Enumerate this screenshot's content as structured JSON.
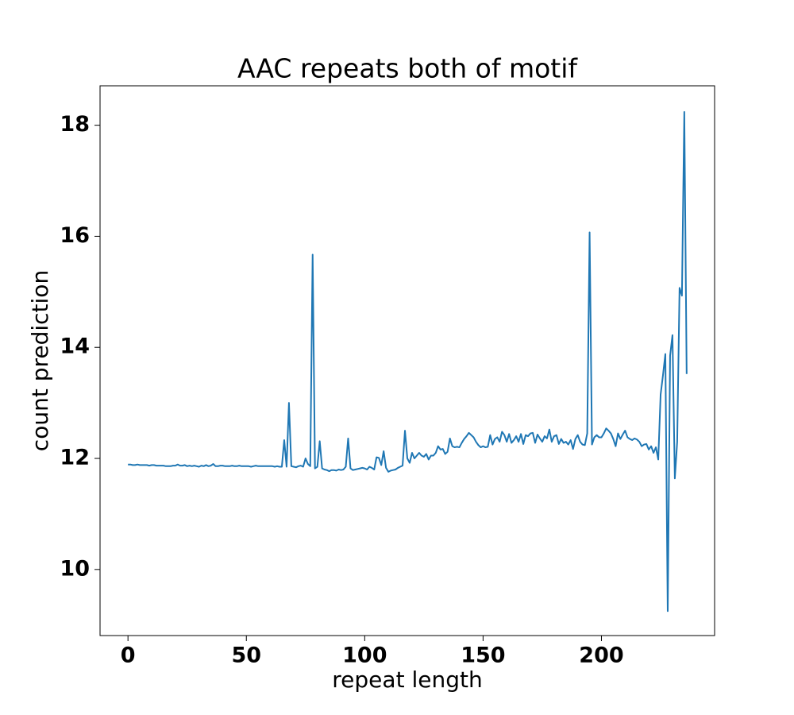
{
  "chart_data": {
    "type": "line",
    "title": "AAC repeats both of motif",
    "x_label": "repeat length",
    "y_label": "count prediction",
    "x": [
      0,
      1,
      2,
      3,
      4,
      5,
      6,
      7,
      8,
      9,
      10,
      11,
      12,
      13,
      14,
      15,
      16,
      17,
      18,
      19,
      20,
      21,
      22,
      23,
      24,
      25,
      26,
      27,
      28,
      29,
      30,
      31,
      32,
      33,
      34,
      35,
      36,
      37,
      38,
      39,
      40,
      41,
      42,
      43,
      44,
      45,
      46,
      47,
      48,
      49,
      50,
      51,
      52,
      53,
      54,
      55,
      56,
      57,
      58,
      59,
      60,
      61,
      62,
      63,
      64,
      65,
      66,
      67,
      68,
      69,
      70,
      71,
      72,
      73,
      74,
      75,
      76,
      77,
      78,
      79,
      80,
      81,
      82,
      83,
      84,
      85,
      86,
      87,
      88,
      89,
      90,
      91,
      92,
      93,
      94,
      95,
      96,
      97,
      98,
      99,
      100,
      101,
      102,
      103,
      104,
      105,
      106,
      107,
      108,
      109,
      110,
      111,
      112,
      113,
      114,
      115,
      116,
      117,
      118,
      119,
      120,
      121,
      122,
      123,
      124,
      125,
      126,
      127,
      128,
      129,
      130,
      131,
      132,
      133,
      134,
      135,
      136,
      137,
      138,
      139,
      140,
      141,
      142,
      143,
      144,
      145,
      146,
      147,
      148,
      149,
      150,
      151,
      152,
      153,
      154,
      155,
      156,
      157,
      158,
      159,
      160,
      161,
      162,
      163,
      164,
      165,
      166,
      167,
      168,
      169,
      170,
      171,
      172,
      173,
      174,
      175,
      176,
      177,
      178,
      179,
      180,
      181,
      182,
      183,
      184,
      185,
      186,
      187,
      188,
      189,
      190,
      191,
      192,
      193,
      194,
      195,
      196,
      197,
      198,
      199,
      200,
      201,
      202,
      203,
      204,
      205,
      206,
      207,
      208,
      209,
      210,
      211,
      212,
      213,
      214,
      215,
      216,
      217,
      218,
      219,
      220,
      221,
      222,
      223,
      224,
      225,
      226,
      227,
      228,
      229,
      230,
      231,
      232,
      233,
      234,
      235,
      236
    ],
    "series": [
      {
        "color": "#1f77b4",
        "values": [
          11.89,
          11.89,
          11.88,
          11.88,
          11.89,
          11.88,
          11.88,
          11.88,
          11.88,
          11.87,
          11.88,
          11.88,
          11.87,
          11.87,
          11.87,
          11.87,
          11.86,
          11.86,
          11.86,
          11.87,
          11.87,
          11.89,
          11.87,
          11.87,
          11.88,
          11.86,
          11.87,
          11.86,
          11.87,
          11.86,
          11.85,
          11.87,
          11.86,
          11.88,
          11.86,
          11.87,
          11.9,
          11.86,
          11.86,
          11.87,
          11.87,
          11.86,
          11.86,
          11.86,
          11.87,
          11.86,
          11.86,
          11.87,
          11.86,
          11.86,
          11.86,
          11.86,
          11.85,
          11.86,
          11.87,
          11.86,
          11.86,
          11.86,
          11.86,
          11.86,
          11.86,
          11.86,
          11.85,
          11.86,
          11.85,
          11.85,
          12.33,
          11.85,
          13.0,
          11.86,
          11.85,
          11.84,
          11.86,
          11.87,
          11.85,
          12.0,
          11.9,
          11.86,
          15.67,
          11.82,
          11.85,
          12.31,
          11.82,
          11.8,
          11.79,
          11.77,
          11.79,
          11.79,
          11.78,
          11.8,
          11.79,
          11.8,
          11.85,
          12.36,
          11.82,
          11.79,
          11.8,
          11.81,
          11.82,
          11.83,
          11.82,
          11.8,
          11.85,
          11.83,
          11.8,
          12.02,
          12.01,
          11.88,
          12.13,
          11.83,
          11.76,
          11.78,
          11.79,
          11.8,
          11.83,
          11.85,
          11.87,
          12.5,
          12.0,
          11.92,
          12.1,
          12.0,
          12.05,
          12.1,
          12.05,
          12.03,
          12.08,
          11.98,
          12.05,
          12.05,
          12.1,
          12.22,
          12.16,
          12.17,
          12.08,
          12.12,
          12.36,
          12.22,
          12.2,
          12.21,
          12.2,
          12.28,
          12.35,
          12.4,
          12.46,
          12.42,
          12.38,
          12.3,
          12.24,
          12.2,
          12.22,
          12.2,
          12.21,
          12.42,
          12.25,
          12.35,
          12.38,
          12.3,
          12.48,
          12.42,
          12.3,
          12.44,
          12.28,
          12.33,
          12.4,
          12.3,
          12.44,
          12.26,
          12.42,
          12.4,
          12.45,
          12.46,
          12.28,
          12.43,
          12.36,
          12.3,
          12.4,
          12.36,
          12.52,
          12.3,
          12.4,
          12.42,
          12.26,
          12.35,
          12.28,
          12.3,
          12.25,
          12.33,
          12.17,
          12.35,
          12.42,
          12.3,
          12.25,
          12.24,
          12.45,
          16.07,
          12.25,
          12.38,
          12.42,
          12.38,
          12.38,
          12.45,
          12.54,
          12.5,
          12.45,
          12.35,
          12.22,
          12.45,
          12.35,
          12.43,
          12.5,
          12.38,
          12.35,
          12.33,
          12.36,
          12.34,
          12.3,
          12.22,
          12.25,
          12.26,
          12.16,
          12.22,
          12.1,
          12.2,
          11.98,
          13.15,
          13.5,
          13.88,
          9.25,
          13.85,
          14.22,
          11.64,
          12.3,
          15.07,
          14.93,
          18.24,
          13.52
        ]
      }
    ],
    "xlim": [
      -11.8,
      247.8
    ],
    "xticks": [
      0,
      50,
      100,
      150,
      200
    ],
    "ylim": [
      8.81,
      18.71
    ],
    "yticks": [
      10,
      12,
      14,
      16,
      18
    ],
    "grid": false
  }
}
